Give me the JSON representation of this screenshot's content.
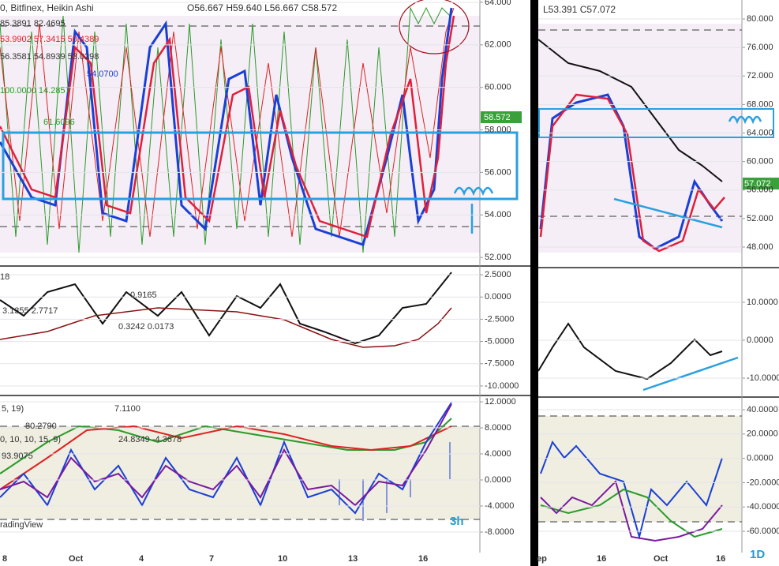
{
  "left_chart": {
    "header": {
      "symbol": "0, Bitfinex, Heikin Ashi",
      "ohlc": "O56.667 H59.640 L56.667 C58.572",
      "lines": [
        "85.3891  82.4695",
        "53.9902  57.3415  50.4389",
        "56.3581  54.8939  53.0298",
        "54.0700",
        "100.0000  14.2857",
        "61.6096"
      ]
    },
    "last_price": "58.572",
    "panes": [
      {
        "ylim": [
          51.67,
          64.11
        ],
        "yticks": [
          {
            "value": 64,
            "label": "64.000"
          },
          {
            "value": 62,
            "label": "62.000"
          },
          {
            "value": 60,
            "label": "60.000"
          },
          {
            "value": 58,
            "label": "58.000"
          },
          {
            "value": 56,
            "label": "56.000"
          },
          {
            "value": 54,
            "label": "54.000"
          },
          {
            "value": 52,
            "label": "52.000"
          }
        ]
      },
      {
        "ylim": [
          -10.98,
          3.39
        ],
        "yticks": [
          {
            "value": 2.5,
            "label": "2.5000"
          },
          {
            "value": 0,
            "label": "0.0000"
          },
          {
            "value": -2.5,
            "label": "-2.5000"
          },
          {
            "value": -5,
            "label": "-5.0000"
          },
          {
            "value": -7.5,
            "label": "-7.5000"
          },
          {
            "value": -10,
            "label": "-10.0000"
          }
        ],
        "labels": [
          "18",
          "0.9165",
          "3.1355  2.7717",
          "0.3242  0.0173"
        ]
      },
      {
        "ylim": [
          -11.15,
          12.85
        ],
        "yticks": [
          {
            "value": 12,
            "label": "12.0000"
          },
          {
            "value": 8,
            "label": "8.0000"
          },
          {
            "value": 4,
            "label": "4.0000"
          },
          {
            "value": 0,
            "label": "0.0000"
          },
          {
            "value": -4,
            "label": "-4.0000"
          },
          {
            "value": -8,
            "label": "-8.0000"
          }
        ],
        "labels": [
          "5, 19)",
          "7.1100",
          "80.2790",
          "0, 10, 10, 15, 9)",
          "24.8349  -4.3678",
          "93.9075",
          "radingView"
        ]
      }
    ],
    "xlabels": [
      "8",
      "Oct",
      "4",
      "7",
      "10",
      "13",
      "16"
    ],
    "timeframe": "3h"
  },
  "right_chart": {
    "header": {
      "ohlc": "L53.391  C57.072"
    },
    "last_price": "57.072",
    "panes": [
      {
        "ylim": [
          45.56,
          82.66
        ],
        "yticks": [
          {
            "value": 80,
            "label": "80.000"
          },
          {
            "value": 76,
            "label": "76.000"
          },
          {
            "value": 72,
            "label": "72.000"
          },
          {
            "value": 68,
            "label": "68.000"
          },
          {
            "value": 64,
            "label": "64.000"
          },
          {
            "value": 60,
            "label": "60.000"
          },
          {
            "value": 56,
            "label": "56.000"
          },
          {
            "value": 52,
            "label": "52.000"
          },
          {
            "value": 48,
            "label": "48.000"
          }
        ]
      },
      {
        "ylim": [
          -14.38,
          18.96
        ],
        "yticks": [
          {
            "value": 10,
            "label": "10.0000"
          },
          {
            "value": 0,
            "label": "0.0000"
          },
          {
            "value": -10,
            "label": "-10.0000"
          }
        ]
      },
      {
        "ylim": [
          -77.5,
          49.1
        ],
        "yticks": [
          {
            "value": 40,
            "label": "40.0000"
          },
          {
            "value": 20,
            "label": "20.0000"
          },
          {
            "value": 0,
            "label": "0.0000"
          },
          {
            "value": -20,
            "label": "-20.0000"
          },
          {
            "value": -40,
            "label": "-40.0000"
          },
          {
            "value": -60,
            "label": "-60.0000"
          }
        ]
      }
    ],
    "xlabels": [
      "ep",
      "16",
      "Oct",
      "16"
    ],
    "timeframe": "1D"
  }
}
